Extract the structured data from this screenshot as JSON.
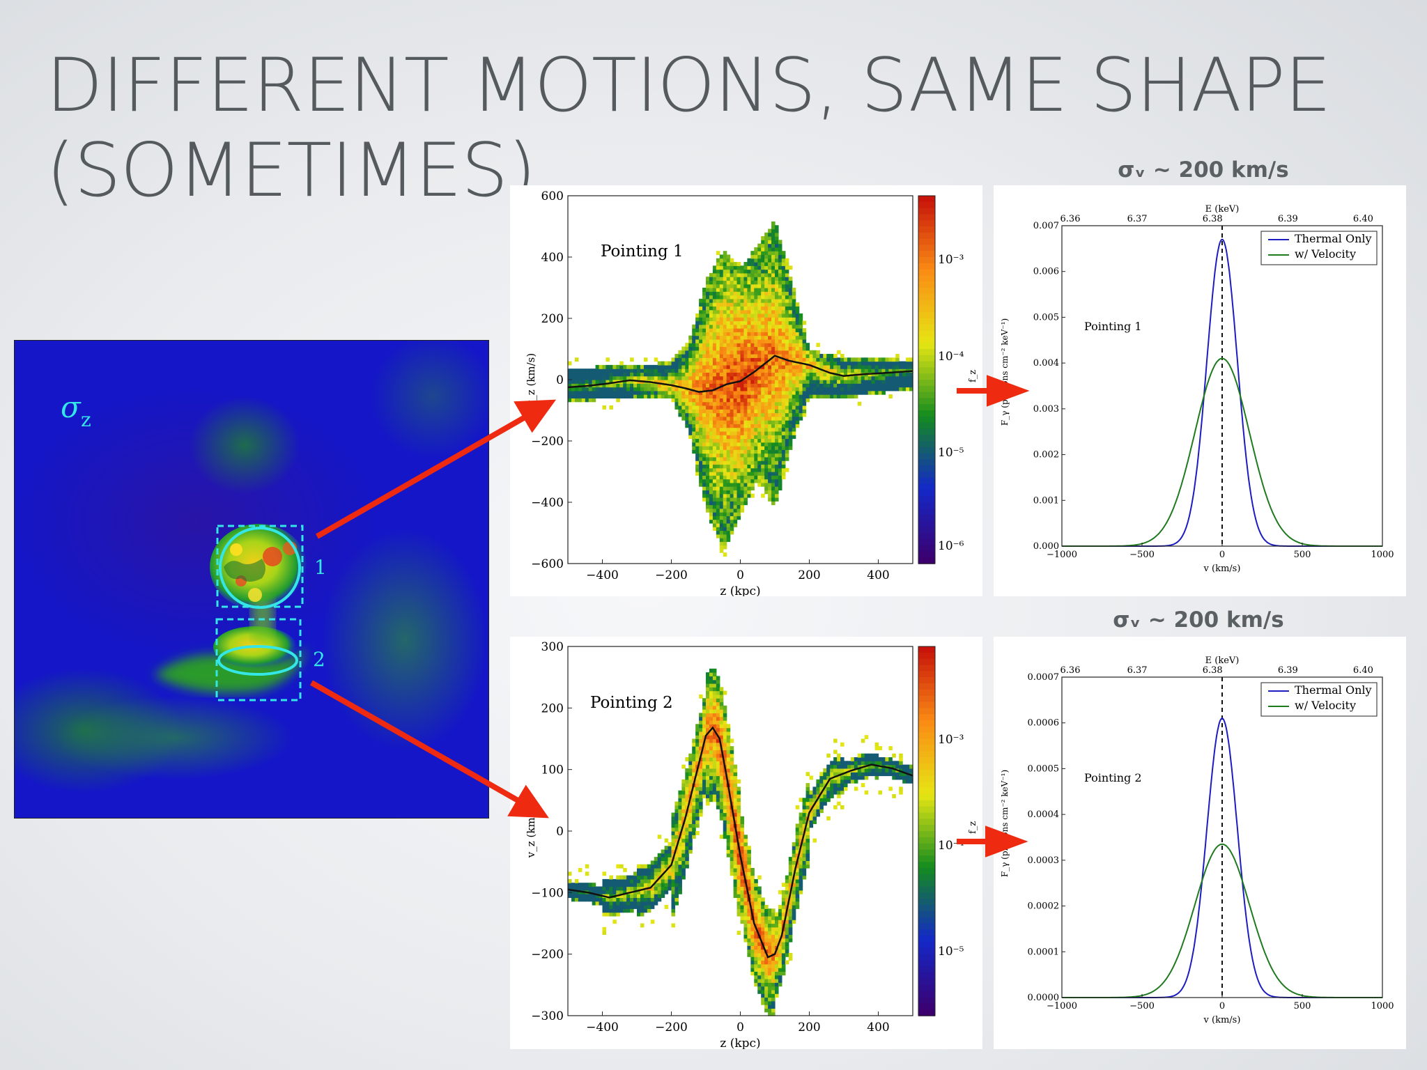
{
  "slide": {
    "title_line1": "DIFFERENT MOTIONS, SAME SHAPE",
    "title_line2": "(SOMETIMES)"
  },
  "sim_image": {
    "field_label": "σ",
    "field_subscript": "z",
    "pointing_numbers": [
      "1",
      "2"
    ],
    "colors": {
      "background": "#1416c8",
      "region_outline": "#35e6e6",
      "arrow": "#ee2a10"
    }
  },
  "spectrum_headers": [
    "σᵥ ~ 200 km/s",
    "σᵥ ~ 200 km/s"
  ],
  "chart_data": [
    {
      "type": "heatmap",
      "annotation": "Pointing 1",
      "xlabel": "z (kpc)",
      "ylabel": "v_z (km/s)",
      "colorbar_label": "f_z",
      "xlim": [
        -500,
        500
      ],
      "ylim": [
        -600,
        600
      ],
      "xticks": [
        -400,
        -200,
        0,
        200,
        400
      ],
      "yticks": [
        -600,
        -400,
        -200,
        0,
        200,
        400,
        600
      ],
      "colorbar_ticks": [
        "10⁻³",
        "10⁻⁴",
        "10⁻⁵",
        "10⁻⁶"
      ],
      "mean_curve": {
        "z": [
          -500,
          -440,
          -380,
          -320,
          -260,
          -200,
          -160,
          -120,
          -80,
          -40,
          0,
          40,
          80,
          100,
          140,
          200,
          260,
          300,
          360,
          420,
          500
        ],
        "v": [
          -25,
          -20,
          -12,
          -2,
          -8,
          -18,
          -28,
          -40,
          -35,
          -15,
          -5,
          25,
          60,
          78,
          62,
          48,
          22,
          12,
          18,
          22,
          28
        ]
      },
      "envelope": {
        "z": [
          -500,
          -300,
          -200,
          -150,
          -100,
          -50,
          0,
          50,
          100,
          150,
          200,
          300,
          500
        ],
        "vmax": [
          40,
          45,
          60,
          120,
          320,
          420,
          360,
          440,
          520,
          320,
          100,
          70,
          65
        ],
        "vmin": [
          -70,
          -60,
          -60,
          -170,
          -420,
          -560,
          -440,
          -320,
          -420,
          -200,
          -60,
          -60,
          -30
        ]
      }
    },
    {
      "type": "line",
      "annotation": "Pointing 1",
      "xlabel": "v (km/s)",
      "top_xlabel": "E (keV)",
      "ylabel": "F_γ (photons cm⁻² keV⁻¹)",
      "xlim": [
        -1000,
        1000
      ],
      "ylim": [
        0,
        0.007
      ],
      "xticks": [
        -1000,
        -500,
        0,
        500,
        1000
      ],
      "yticks": [
        "0.000",
        "0.001",
        "0.002",
        "0.003",
        "0.004",
        "0.005",
        "0.006",
        "0.007"
      ],
      "top_ticks": [
        {
          "label": "6.36",
          "v": -1000
        },
        {
          "label": "6.37",
          "v": -530
        },
        {
          "label": "6.38",
          "v": -60
        },
        {
          "label": "6.39",
          "v": 410
        },
        {
          "label": "6.40",
          "v": 880
        }
      ],
      "series": [
        {
          "name": "Thermal Only",
          "color": "#1c1cbf",
          "peak": 0.0067,
          "sigma": 95
        },
        {
          "name": "w/ Velocity",
          "color": "#1f7a1f",
          "peak": 0.0041,
          "sigma": 170
        }
      ]
    },
    {
      "type": "heatmap",
      "annotation": "Pointing 2",
      "xlabel": "z (kpc)",
      "ylabel": "v_z (km/s)",
      "colorbar_label": "f_z",
      "xlim": [
        -500,
        500
      ],
      "ylim": [
        -300,
        300
      ],
      "xticks": [
        -400,
        -200,
        0,
        200,
        400
      ],
      "yticks": [
        -300,
        -200,
        -100,
        0,
        100,
        200,
        300
      ],
      "colorbar_ticks": [
        "10⁻³",
        "10⁻⁴",
        "10⁻⁵"
      ],
      "mean_curve": {
        "z": [
          -500,
          -440,
          -380,
          -320,
          -260,
          -200,
          -160,
          -120,
          -100,
          -80,
          -60,
          -40,
          0,
          40,
          80,
          100,
          120,
          160,
          200,
          260,
          320,
          380,
          440,
          500
        ],
        "v": [
          -95,
          -100,
          -108,
          -100,
          -92,
          -55,
          20,
          110,
          155,
          168,
          150,
          90,
          -40,
          -150,
          -205,
          -200,
          -170,
          -60,
          30,
          85,
          98,
          108,
          102,
          90
        ]
      },
      "envelope_halfwidth": [
        15,
        30,
        40,
        55,
        80,
        60,
        40,
        30,
        20,
        15
      ]
    },
    {
      "type": "line",
      "annotation": "Pointing 2",
      "xlabel": "v (km/s)",
      "top_xlabel": "E (keV)",
      "ylabel": "F_γ (photons cm⁻² keV⁻¹)",
      "xlim": [
        -1000,
        1000
      ],
      "ylim": [
        0,
        0.0007
      ],
      "xticks": [
        -1000,
        -500,
        0,
        500,
        1000
      ],
      "yticks": [
        "0.0000",
        "0.0001",
        "0.0002",
        "0.0003",
        "0.0004",
        "0.0005",
        "0.0006",
        "0.0007"
      ],
      "top_ticks": [
        {
          "label": "6.36",
          "v": -1000
        },
        {
          "label": "6.37",
          "v": -530
        },
        {
          "label": "6.38",
          "v": -60
        },
        {
          "label": "6.39",
          "v": 410
        },
        {
          "label": "6.40",
          "v": 880
        }
      ],
      "series": [
        {
          "name": "Thermal Only",
          "color": "#1c1cbf",
          "peak": 0.00061,
          "sigma": 95
        },
        {
          "name": "w/ Velocity",
          "color": "#1f7a1f",
          "peak": 0.000335,
          "sigma": 170
        }
      ]
    }
  ]
}
